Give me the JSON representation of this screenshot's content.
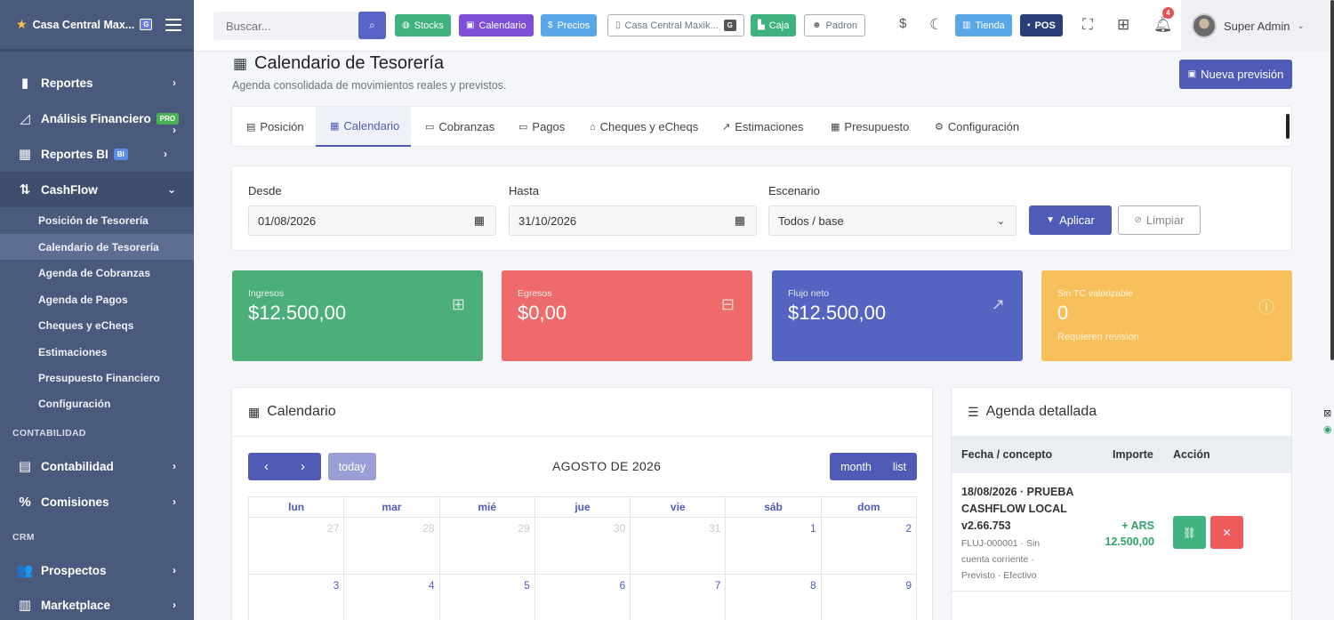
{
  "sidebar": {
    "brand": "Casa Central Max...",
    "brand_badge": "G",
    "items": [
      {
        "label": "Reportes",
        "icon": "bar-chart-icon"
      },
      {
        "label": "Análisis Financiero",
        "badge": "PRO",
        "icon": "area-chart-icon"
      },
      {
        "label": "Reportes BI",
        "badge": "BI",
        "icon": "bi-report-icon"
      },
      {
        "label": "CashFlow",
        "icon": "cashflow-icon"
      }
    ],
    "subitems": [
      "Posición de Tesorería",
      "Calendario de Tesorería",
      "Agenda de Cobranzas",
      "Agenda de Pagos",
      "Cheques y eCheqs",
      "Estimaciones",
      "Presupuesto Financiero",
      "Configuración"
    ],
    "section_contabilidad": "CONTABILIDAD",
    "contabilidad_items": [
      {
        "label": "Contabilidad",
        "icon": "book-icon"
      },
      {
        "label": "Comisiones",
        "icon": "percent-icon"
      }
    ],
    "section_crm": "CRM",
    "crm_items": [
      {
        "label": "Prospectos",
        "icon": "users-icon"
      },
      {
        "label": "Marketplace",
        "icon": "store-icon"
      }
    ]
  },
  "topbar": {
    "search_placeholder": "Buscar...",
    "buttons": {
      "stocks": "Stocks",
      "calendario": "Calendario",
      "precios": "Precios",
      "branch": "Casa Central Maxik...",
      "branch_badge": "G",
      "caja": "Caja",
      "padron": "Padron",
      "tienda": "Tienda",
      "pos": "POS"
    },
    "notifications": "4",
    "user": "Super Admin",
    "colors": {
      "stocks": "#3fb27f",
      "calendario": "#7c4fd6",
      "precios": "#5aa7e8",
      "caja": "#3fb27f",
      "tienda": "#5aa7e8",
      "pos": "#2c3e7a"
    }
  },
  "page": {
    "title": "Calendario de Tesorería",
    "subtitle": "Agenda consolidada de movimientos reales y previstos.",
    "new_button": "Nueva previsión"
  },
  "tabs": [
    "Posición",
    "Calendario",
    "Cobranzas",
    "Pagos",
    "Cheques y eCheqs",
    "Estimaciones",
    "Presupuesto",
    "Configuración"
  ],
  "filters": {
    "desde_label": "Desde",
    "desde_value": "01/08/2026",
    "hasta_label": "Hasta",
    "hasta_value": "31/10/2026",
    "escenario_label": "Escenario",
    "escenario_value": "Todos / base",
    "apply": "Aplicar",
    "clear": "Limpiar"
  },
  "stats": [
    {
      "label": "Ingresos",
      "value": "$12.500,00",
      "color": "#4cae79"
    },
    {
      "label": "Egresos",
      "value": "$0,00",
      "color": "#ef6b6b"
    },
    {
      "label": "Flujo neto",
      "value": "$12.500,00",
      "color": "#5563c1"
    },
    {
      "label": "Sin TC valorizable",
      "value": "0",
      "note": "Requieren revisión",
      "color": "#f8c05a"
    }
  ],
  "calendar": {
    "title": "Calendario",
    "today": "today",
    "month_title": "AGOSTO DE 2026",
    "views": {
      "month": "month",
      "list": "list"
    },
    "weekdays": [
      "lun",
      "mar",
      "mié",
      "jue",
      "vie",
      "sáb",
      "dom"
    ],
    "weeks": [
      [
        "27",
        "28",
        "29",
        "30",
        "31",
        "1",
        "2"
      ],
      [
        "3",
        "4",
        "5",
        "6",
        "7",
        "8",
        "9"
      ]
    ]
  },
  "agenda": {
    "title": "Agenda detallada",
    "columns": {
      "fecha": "Fecha / concepto",
      "importe": "Importe",
      "accion": "Acción"
    },
    "rows": [
      {
        "title": "18/08/2026 · PRUEBA CASHFLOW LOCAL v2.66.753",
        "meta": "FLUJ-000001 · Sin cuenta corriente · Previsto · Efectivo",
        "amount_prefix": "+ ARS",
        "amount": "12.500,00"
      }
    ]
  }
}
